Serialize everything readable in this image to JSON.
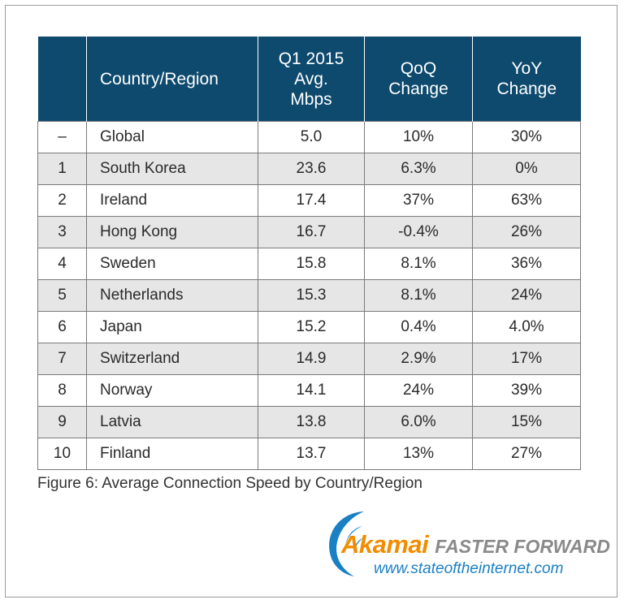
{
  "chart_data": {
    "type": "table",
    "title": "Figure 6: Average Connection Speed by Country/Region",
    "columns": [
      "",
      "Country/Region",
      "Q1 2015 Avg. Mbps",
      "QoQ Change",
      "YoY Change"
    ],
    "header": {
      "rank": "",
      "country": "Country/Region",
      "avg_line1": "Q1 2015",
      "avg_line2": "Avg.",
      "avg_line3": "Mbps",
      "qoq_line1": "QoQ",
      "qoq_line2": "Change",
      "yoy_line1": "YoY",
      "yoy_line2": "Change"
    },
    "rows": [
      {
        "rank": "–",
        "country": "Global",
        "avg": "5.0",
        "qoq": "10%",
        "yoy": "30%"
      },
      {
        "rank": "1",
        "country": "South Korea",
        "avg": "23.6",
        "qoq": "6.3%",
        "yoy": "0%"
      },
      {
        "rank": "2",
        "country": "Ireland",
        "avg": "17.4",
        "qoq": "37%",
        "yoy": "63%"
      },
      {
        "rank": "3",
        "country": "Hong Kong",
        "avg": "16.7",
        "qoq": "-0.4%",
        "yoy": "26%"
      },
      {
        "rank": "4",
        "country": "Sweden",
        "avg": "15.8",
        "qoq": "8.1%",
        "yoy": "36%"
      },
      {
        "rank": "5",
        "country": "Netherlands",
        "avg": "15.3",
        "qoq": "8.1%",
        "yoy": "24%"
      },
      {
        "rank": "6",
        "country": "Japan",
        "avg": "15.2",
        "qoq": "0.4%",
        "yoy": "4.0%"
      },
      {
        "rank": "7",
        "country": "Switzerland",
        "avg": "14.9",
        "qoq": "2.9%",
        "yoy": "17%"
      },
      {
        "rank": "8",
        "country": "Norway",
        "avg": "14.1",
        "qoq": "24%",
        "yoy": "39%"
      },
      {
        "rank": "9",
        "country": "Latvia",
        "avg": "13.8",
        "qoq": "6.0%",
        "yoy": "15%"
      },
      {
        "rank": "10",
        "country": "Finland",
        "avg": "13.7",
        "qoq": "13%",
        "yoy": "27%"
      }
    ],
    "colors": {
      "header_bg": "#0d4a6e",
      "alt_row_bg": "#e6e6e7",
      "brand_orange": "#f28c00",
      "url_blue": "#1a80c4"
    }
  },
  "branding": {
    "logo_text": "Akamai",
    "tagline": "FASTER FORWARD",
    "url": "www.stateoftheinternet.com"
  }
}
